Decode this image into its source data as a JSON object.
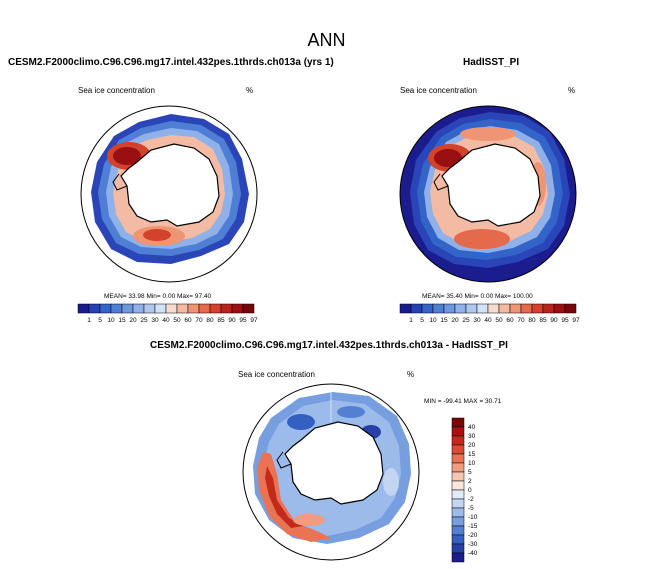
{
  "title": "ANN",
  "panels": {
    "model": {
      "title": "CESM2.F2000climo.C96.C96.mg17.intel.432pes.1thrds.ch013a (yrs 1)",
      "variable": "Sea ice concentration",
      "units": "%",
      "stats": "MEAN=  33.98  Min=   0.00  Max=  97.40"
    },
    "obs": {
      "title": "HadISST_PI",
      "variable": "Sea ice concentration",
      "units": "%",
      "stats": "MEAN=  35.40  Min=   0.00  Max= 100.00"
    },
    "diff": {
      "title": "CESM2.F2000climo.C96.C96.mg17.intel.432pes.1thrds.ch013a - HadISST_PI",
      "variable": "Sea ice concentration",
      "units": "%",
      "stats": "MIN = -99.41 MAX =  30.71"
    }
  },
  "colorbar_levels": [
    "1",
    "5",
    "10",
    "15",
    "20",
    "25",
    "30",
    "40",
    "50",
    "60",
    "70",
    "80",
    "85",
    "90",
    "95",
    "97"
  ],
  "colorbar_colors": [
    "#1b1c8e",
    "#2641b5",
    "#3364c8",
    "#4f7fd4",
    "#6e98de",
    "#8fb0e8",
    "#b0c8f0",
    "#d3e2f7",
    "#f4ddd0",
    "#f3bba3",
    "#ef9574",
    "#e46a4b",
    "#d2422d",
    "#b8241c",
    "#9a1010",
    "#7a0707"
  ],
  "diff_colorbar_levels": [
    "40",
    "30",
    "20",
    "15",
    "10",
    "5",
    "2",
    "0",
    "-2",
    "-5",
    "-10",
    "-15",
    "-20",
    "-30",
    "-40"
  ],
  "diff_colorbar_colors": [
    "#7a0707",
    "#a4130f",
    "#c42a1c",
    "#dc4a31",
    "#ea7353",
    "#f29c7f",
    "#f6c6b1",
    "#fbe6dc",
    "#e2ebf8",
    "#c2d5f1",
    "#9dbbea",
    "#779edf",
    "#5480d2",
    "#3460c2",
    "#2640a8",
    "#1b1c8e"
  ],
  "icons": {
    "maps": "polar-stereographic-antarctic"
  }
}
